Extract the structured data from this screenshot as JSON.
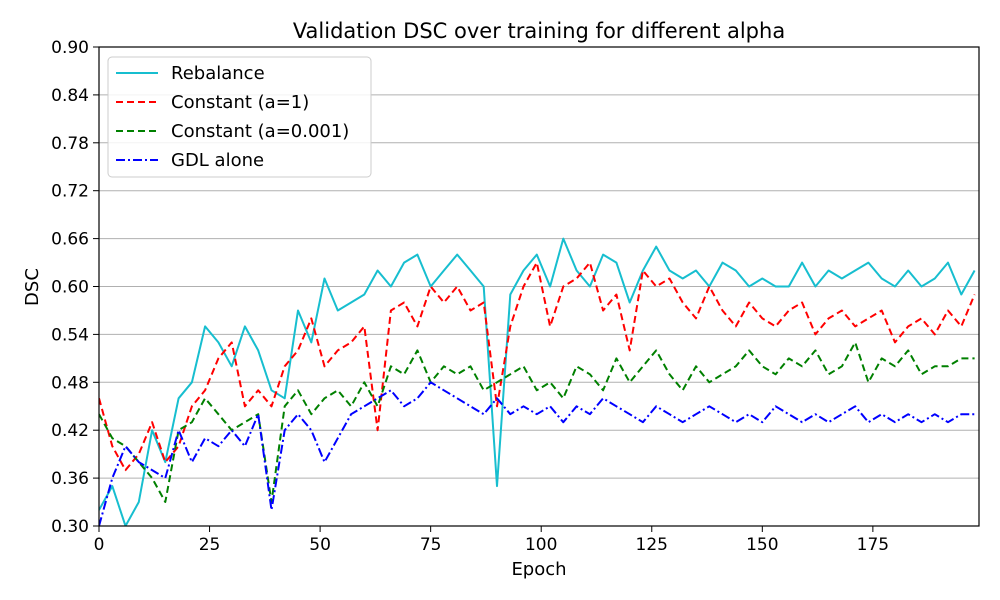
{
  "chart_data": {
    "type": "line",
    "title": "Validation DSC over training for different alpha",
    "xlabel": "Epoch",
    "ylabel": "DSC",
    "xlim": [
      0,
      199
    ],
    "ylim": [
      0.3,
      0.9
    ],
    "xticks": [
      0,
      25,
      50,
      75,
      100,
      125,
      150,
      175
    ],
    "xtick_labels": [
      "0",
      "25",
      "50",
      "75",
      "100",
      "125",
      "150",
      "175"
    ],
    "yticks": [
      0.3,
      0.36,
      0.42,
      0.48,
      0.54,
      0.6,
      0.66,
      0.72,
      0.78,
      0.84,
      0.9
    ],
    "ytick_labels": [
      "0.30",
      "0.36",
      "0.42",
      "0.48",
      "0.54",
      "0.60",
      "0.66",
      "0.72",
      "0.78",
      "0.84",
      "0.90"
    ],
    "grid": "horizontal",
    "legend_position": "top-left",
    "x_sampling": "every 3 epochs (0, 3, 6, ..., 198)",
    "series": [
      {
        "name": "Rebalance",
        "color": "#17becf",
        "dash": "solid",
        "values": [
          0.32,
          0.35,
          0.3,
          0.33,
          0.42,
          0.38,
          0.46,
          0.48,
          0.55,
          0.53,
          0.5,
          0.55,
          0.52,
          0.47,
          0.46,
          0.57,
          0.53,
          0.61,
          0.57,
          0.58,
          0.59,
          0.62,
          0.6,
          0.63,
          0.64,
          0.6,
          0.62,
          0.64,
          0.62,
          0.6,
          0.35,
          0.59,
          0.62,
          0.64,
          0.6,
          0.66,
          0.62,
          0.6,
          0.64,
          0.63,
          0.58,
          0.62,
          0.65,
          0.62,
          0.61,
          0.62,
          0.6,
          0.63,
          0.62,
          0.6,
          0.61,
          0.6,
          0.6,
          0.63,
          0.6,
          0.62,
          0.61,
          0.62,
          0.63,
          0.61,
          0.6,
          0.62,
          0.6,
          0.61,
          0.63,
          0.59,
          0.62
        ]
      },
      {
        "name": "Constant (a=1)",
        "color": "#ff0000",
        "dash": "dashed",
        "values": [
          0.46,
          0.4,
          0.37,
          0.39,
          0.43,
          0.38,
          0.4,
          0.45,
          0.47,
          0.51,
          0.53,
          0.45,
          0.47,
          0.45,
          0.5,
          0.52,
          0.56,
          0.5,
          0.52,
          0.53,
          0.55,
          0.42,
          0.57,
          0.58,
          0.55,
          0.6,
          0.58,
          0.6,
          0.57,
          0.58,
          0.45,
          0.55,
          0.6,
          0.63,
          0.55,
          0.6,
          0.61,
          0.63,
          0.57,
          0.59,
          0.52,
          0.62,
          0.6,
          0.61,
          0.58,
          0.56,
          0.6,
          0.57,
          0.55,
          0.58,
          0.56,
          0.55,
          0.57,
          0.58,
          0.54,
          0.56,
          0.57,
          0.55,
          0.56,
          0.57,
          0.53,
          0.55,
          0.56,
          0.54,
          0.57,
          0.55,
          0.59
        ]
      },
      {
        "name": "Constant (a=0.001)",
        "color": "#008000",
        "dash": "dashed",
        "values": [
          0.44,
          0.41,
          0.4,
          0.38,
          0.36,
          0.33,
          0.42,
          0.43,
          0.46,
          0.44,
          0.42,
          0.43,
          0.44,
          0.33,
          0.45,
          0.47,
          0.44,
          0.46,
          0.47,
          0.45,
          0.48,
          0.45,
          0.5,
          0.49,
          0.52,
          0.48,
          0.5,
          0.49,
          0.5,
          0.47,
          0.48,
          0.49,
          0.5,
          0.47,
          0.48,
          0.46,
          0.5,
          0.49,
          0.47,
          0.51,
          0.48,
          0.5,
          0.52,
          0.49,
          0.47,
          0.5,
          0.48,
          0.49,
          0.5,
          0.52,
          0.5,
          0.49,
          0.51,
          0.5,
          0.52,
          0.49,
          0.5,
          0.53,
          0.48,
          0.51,
          0.5,
          0.52,
          0.49,
          0.5,
          0.5,
          0.51,
          0.51
        ]
      },
      {
        "name": "GDL alone",
        "color": "#0000ff",
        "dash": "dashdot",
        "values": [
          0.3,
          0.36,
          0.4,
          0.38,
          0.37,
          0.36,
          0.42,
          0.38,
          0.41,
          0.4,
          0.42,
          0.4,
          0.44,
          0.32,
          0.42,
          0.44,
          0.42,
          0.38,
          0.41,
          0.44,
          0.45,
          0.46,
          0.47,
          0.45,
          0.46,
          0.48,
          0.47,
          0.46,
          0.45,
          0.44,
          0.46,
          0.44,
          0.45,
          0.44,
          0.45,
          0.43,
          0.45,
          0.44,
          0.46,
          0.45,
          0.44,
          0.43,
          0.45,
          0.44,
          0.43,
          0.44,
          0.45,
          0.44,
          0.43,
          0.44,
          0.43,
          0.45,
          0.44,
          0.43,
          0.44,
          0.43,
          0.44,
          0.45,
          0.43,
          0.44,
          0.43,
          0.44,
          0.43,
          0.44,
          0.43,
          0.44,
          0.44
        ]
      }
    ]
  }
}
